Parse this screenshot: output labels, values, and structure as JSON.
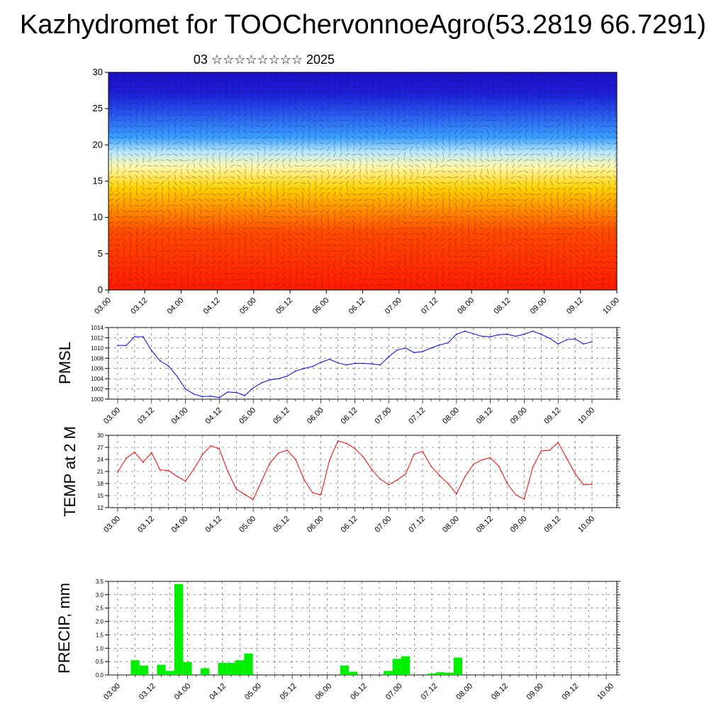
{
  "title": "Kazhydromet for TOOChervonnoeAgro(53.2819 66.7291)",
  "subtitle": "03 ☆☆☆☆☆☆☆☆ 2025",
  "time_labels": [
    "03.00",
    "03.12",
    "04.00",
    "04.12",
    "05.00",
    "05.12",
    "06.00",
    "06.12",
    "07.00",
    "07.12",
    "08.00",
    "08.12",
    "09.00",
    "09.12",
    "10.00"
  ],
  "colors": {
    "pmsl_line": "#0000ff",
    "temp_line": "#ff0000",
    "precip_bar": "#00ee00",
    "cross_section_top": "#1818d8",
    "cross_section_bottom": "#ff1a00"
  },
  "chart_data": [
    {
      "type": "heatmap",
      "name": "vertical cross-section (color-filled field with wind vectors)",
      "ylim": [
        0,
        30
      ],
      "yticks": [
        0,
        5,
        10,
        15,
        20,
        25,
        30
      ],
      "xticks": [
        "03.00",
        "03.12",
        "04.00",
        "04.12",
        "05.00",
        "05.12",
        "06.00",
        "06.12",
        "07.00",
        "07.12",
        "08.00",
        "08.12",
        "09.00",
        "09.12",
        "10.00"
      ],
      "bands": [
        {
          "level": 0,
          "color": "#ff1a00"
        },
        {
          "level": 8,
          "color": "#ff4a00"
        },
        {
          "level": 11,
          "color": "#ff8c00"
        },
        {
          "level": 14,
          "color": "#ffd000"
        },
        {
          "level": 17,
          "color": "#fff8b0"
        },
        {
          "level": 19,
          "color": "#b8e8ff"
        },
        {
          "level": 21,
          "color": "#3aa0ff"
        },
        {
          "level": 24,
          "color": "#2a5cf0"
        },
        {
          "level": 27,
          "color": "#1c20d8"
        },
        {
          "level": 30,
          "color": "#1a10c8"
        }
      ]
    },
    {
      "type": "line",
      "ylabel": "PMSL",
      "ylim": [
        1000,
        1014
      ],
      "yticks": [
        1000,
        1002,
        1004,
        1006,
        1008,
        1010,
        1012,
        1014
      ],
      "x": [
        0,
        0.25,
        0.5,
        0.75,
        1,
        1.25,
        1.5,
        1.75,
        2,
        2.25,
        2.5,
        2.75,
        3,
        3.25,
        3.5,
        3.75,
        4,
        4.25,
        4.5,
        4.75,
        5,
        5.25,
        5.5,
        5.75,
        6,
        6.25,
        6.5,
        6.75,
        7,
        7.25,
        7.5,
        7.75,
        8,
        8.25,
        8.5,
        8.75,
        9,
        9.25,
        9.5,
        9.75,
        10,
        10.25,
        10.5,
        10.75,
        11,
        11.25,
        11.5,
        11.75,
        12,
        12.25,
        12.5,
        12.75,
        13,
        13.25,
        13.5,
        13.75,
        14
      ],
      "values": [
        1010.5,
        1010.5,
        1012.2,
        1012.2,
        1009.5,
        1007.5,
        1006.5,
        1004.5,
        1002,
        1001,
        1000.5,
        1000.6,
        1000.3,
        1001.4,
        1001.3,
        1000.7,
        1002.2,
        1003.2,
        1003.8,
        1004,
        1004.5,
        1005.5,
        1006,
        1006.4,
        1007.2,
        1007.8,
        1007.1,
        1006.7,
        1007,
        1007,
        1006.9,
        1006.7,
        1008.3,
        1009.6,
        1010,
        1009.1,
        1009.3,
        1010,
        1010.6,
        1011,
        1012.7,
        1013.3,
        1012.8,
        1012.3,
        1012.2,
        1012.6,
        1012.7,
        1012.3,
        1012.7,
        1013.3,
        1012.7,
        1011.9,
        1010.8,
        1011.6,
        1011.8,
        1010.8,
        1011.2
      ]
    },
    {
      "type": "line",
      "ylabel": "TEMP at 2 M",
      "ylim": [
        12,
        30
      ],
      "yticks": [
        12,
        15,
        18,
        21,
        24,
        27,
        30
      ],
      "x": [
        0,
        0.25,
        0.5,
        0.75,
        1,
        1.25,
        1.5,
        1.75,
        2,
        2.25,
        2.5,
        2.75,
        3,
        3.25,
        3.5,
        3.75,
        4,
        4.25,
        4.5,
        4.75,
        5,
        5.25,
        5.5,
        5.75,
        6,
        6.25,
        6.5,
        6.75,
        7,
        7.25,
        7.5,
        7.75,
        8,
        8.25,
        8.5,
        8.75,
        9,
        9.25,
        9.5,
        9.75,
        10,
        10.25,
        10.5,
        10.75,
        11,
        11.25,
        11.5,
        11.75,
        12,
        12.25,
        12.5,
        12.75,
        13,
        13.25,
        13.5,
        13.75,
        14
      ],
      "values": [
        20.8,
        24.3,
        25.8,
        23.3,
        25.7,
        21.4,
        21.2,
        19.8,
        18.6,
        21.6,
        25.2,
        27.4,
        26.6,
        21,
        16.6,
        15.3,
        14,
        18.7,
        23.2,
        25.6,
        26.3,
        24,
        19,
        15.7,
        15.2,
        23.8,
        28.6,
        28,
        26.7,
        24.6,
        21.5,
        19.1,
        17.7,
        18.9,
        20.4,
        25.3,
        26,
        22.3,
        20,
        18,
        15.4,
        19.7,
        22.8,
        23.9,
        24.4,
        22.3,
        18,
        15.2,
        14.1,
        22,
        26.1,
        26.3,
        28.2,
        24.3,
        20.5,
        17.7,
        17.8
      ]
    },
    {
      "type": "bar",
      "ylabel": "PRECIP, mm",
      "ylim": [
        0,
        3.5
      ],
      "yticks": [
        "0.0",
        "0.5",
        "1.0",
        "1.5",
        "2.0",
        "2.5",
        "3.0",
        "3.5"
      ],
      "x": [
        0,
        0.25,
        0.5,
        0.75,
        1,
        1.25,
        1.5,
        1.75,
        2,
        2.25,
        2.5,
        2.75,
        3,
        3.25,
        3.5,
        3.75,
        4,
        4.25,
        4.5,
        4.75,
        5,
        5.25,
        5.5,
        5.75,
        6,
        6.25,
        6.5,
        6.75,
        7,
        7.25,
        7.5,
        7.75,
        8,
        8.25,
        8.5,
        8.75,
        9,
        9.25,
        9.5,
        9.75,
        10,
        10.25,
        10.5,
        10.75,
        11,
        11.25,
        11.5,
        11.75,
        12,
        12.25,
        12.5,
        12.75,
        13,
        13.25,
        13.5,
        13.75
      ],
      "values": [
        0,
        0.55,
        0.35,
        0,
        0.38,
        0.15,
        3.4,
        0.48,
        0,
        0.25,
        0,
        0.45,
        0.45,
        0.55,
        0.8,
        0,
        0,
        0,
        0,
        0,
        0,
        0,
        0,
        0,
        0,
        0.35,
        0.12,
        0,
        0,
        0,
        0.15,
        0.6,
        0.7,
        0,
        0,
        0.05,
        0.1,
        0.08,
        0.65,
        0,
        0,
        0,
        0,
        0,
        0,
        0,
        0,
        0,
        0,
        0,
        0,
        0,
        0,
        0,
        0,
        0
      ]
    }
  ]
}
